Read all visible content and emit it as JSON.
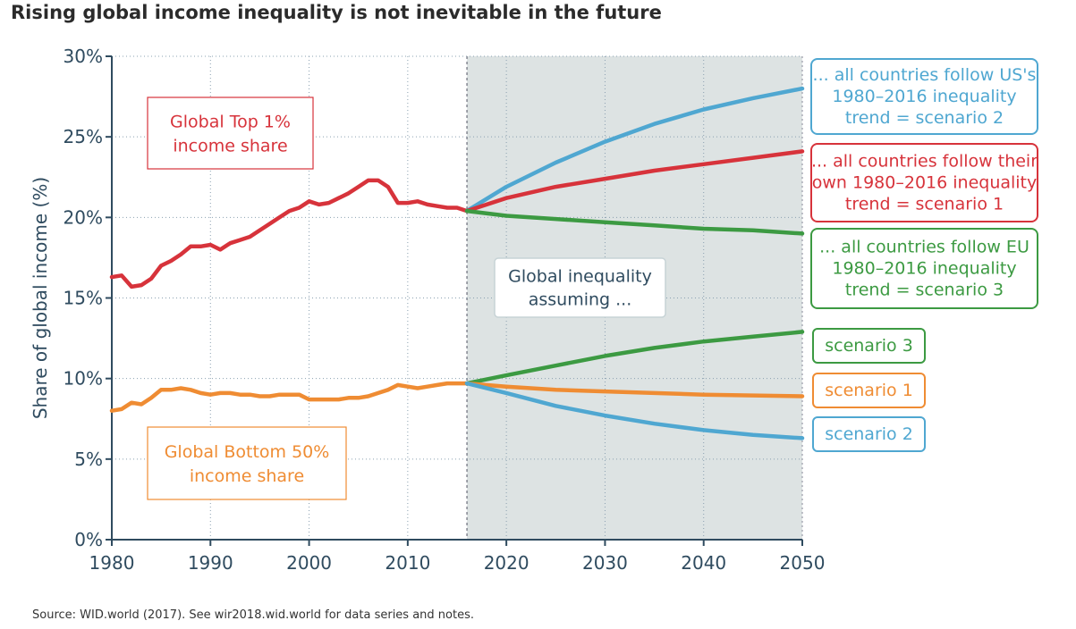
{
  "title": "Rising global income inequality is not inevitable in the future",
  "source": "Source: WID.world (2017). See wir2018.wid.world for data series and notes.",
  "colors": {
    "red": "#d7333b",
    "orange": "#ef8c33",
    "blue": "#4fa7d1",
    "green": "#3c9a42",
    "axis": "#2f4b5f",
    "shade": "#dde3e3",
    "textbox": "#2f4b5f"
  },
  "chart_data": {
    "type": "line",
    "xlabel": "",
    "ylabel": "Share of global income (%)",
    "xlim": [
      1980,
      2050
    ],
    "ylim": [
      0,
      30
    ],
    "xticks": [
      1980,
      1990,
      2000,
      2010,
      2020,
      2030,
      2040,
      2050
    ],
    "xtick_labels": [
      "1980",
      "1990",
      "2000",
      "2010",
      "2020",
      "2030",
      "2040",
      "2050"
    ],
    "yticks": [
      0,
      5,
      10,
      15,
      20,
      25,
      30
    ],
    "ytick_labels": [
      "0%",
      "5%",
      "10%",
      "15%",
      "20%",
      "25%",
      "30%"
    ],
    "projection_start": 2016,
    "grid": true,
    "series": [
      {
        "name": "Global Top 1% income share",
        "color": "red",
        "x": [
          1980,
          1981,
          1982,
          1983,
          1984,
          1985,
          1986,
          1987,
          1988,
          1989,
          1990,
          1991,
          1992,
          1993,
          1994,
          1995,
          1996,
          1997,
          1998,
          1999,
          2000,
          2001,
          2002,
          2003,
          2004,
          2005,
          2006,
          2007,
          2008,
          2009,
          2010,
          2011,
          2012,
          2013,
          2014,
          2015,
          2016
        ],
        "y": [
          16.3,
          16.4,
          15.7,
          15.8,
          16.2,
          17.0,
          17.3,
          17.7,
          18.2,
          18.2,
          18.3,
          18.0,
          18.4,
          18.6,
          18.8,
          19.2,
          19.6,
          20.0,
          20.4,
          20.6,
          21.0,
          20.8,
          20.9,
          21.2,
          21.5,
          21.9,
          22.3,
          22.3,
          21.9,
          20.9,
          20.9,
          21.0,
          20.8,
          20.7,
          20.6,
          20.6,
          20.4
        ]
      },
      {
        "name": "Global Bottom 50% income share",
        "color": "orange",
        "x": [
          1980,
          1981,
          1982,
          1983,
          1984,
          1985,
          1986,
          1987,
          1988,
          1989,
          1990,
          1991,
          1992,
          1993,
          1994,
          1995,
          1996,
          1997,
          1998,
          1999,
          2000,
          2001,
          2002,
          2003,
          2004,
          2005,
          2006,
          2007,
          2008,
          2009,
          2010,
          2011,
          2012,
          2013,
          2014,
          2015,
          2016
        ],
        "y": [
          8.0,
          8.1,
          8.5,
          8.4,
          8.8,
          9.3,
          9.3,
          9.4,
          9.3,
          9.1,
          9.0,
          9.1,
          9.1,
          9.0,
          9.0,
          8.9,
          8.9,
          9.0,
          9.0,
          9.0,
          8.7,
          8.7,
          8.7,
          8.7,
          8.8,
          8.8,
          8.9,
          9.1,
          9.3,
          9.6,
          9.5,
          9.4,
          9.5,
          9.6,
          9.7,
          9.7,
          9.7
        ]
      },
      {
        "name": "Top 1% scenario 2",
        "color": "blue",
        "x": [
          2016,
          2020,
          2025,
          2030,
          2035,
          2040,
          2045,
          2050
        ],
        "y": [
          20.4,
          21.9,
          23.4,
          24.7,
          25.8,
          26.7,
          27.4,
          28.0
        ]
      },
      {
        "name": "Top 1% scenario 1",
        "color": "red",
        "x": [
          2016,
          2020,
          2025,
          2030,
          2035,
          2040,
          2045,
          2050
        ],
        "y": [
          20.4,
          21.2,
          21.9,
          22.4,
          22.9,
          23.3,
          23.7,
          24.1
        ]
      },
      {
        "name": "Top 1% scenario 3",
        "color": "green",
        "x": [
          2016,
          2020,
          2025,
          2030,
          2035,
          2040,
          2045,
          2050
        ],
        "y": [
          20.4,
          20.1,
          19.9,
          19.7,
          19.5,
          19.3,
          19.2,
          19.0
        ]
      },
      {
        "name": "Bottom 50% scenario 3",
        "color": "green",
        "x": [
          2016,
          2020,
          2025,
          2030,
          2035,
          2040,
          2045,
          2050
        ],
        "y": [
          9.7,
          10.2,
          10.8,
          11.4,
          11.9,
          12.3,
          12.6,
          12.9
        ]
      },
      {
        "name": "Bottom 50% scenario 1",
        "color": "orange",
        "x": [
          2016,
          2020,
          2025,
          2030,
          2035,
          2040,
          2045,
          2050
        ],
        "y": [
          9.7,
          9.5,
          9.3,
          9.2,
          9.1,
          9.0,
          8.95,
          8.9
        ]
      },
      {
        "name": "Bottom 50% scenario 2",
        "color": "blue",
        "x": [
          2016,
          2020,
          2025,
          2030,
          2035,
          2040,
          2045,
          2050
        ],
        "y": [
          9.7,
          9.1,
          8.3,
          7.7,
          7.2,
          6.8,
          6.5,
          6.3
        ]
      }
    ],
    "annotations": {
      "top1_label": [
        "Global Top 1%",
        "income share"
      ],
      "bottom50_label": [
        "Global Bottom 50%",
        "income share"
      ],
      "assumption_label": [
        "Global inequality",
        "assuming ..."
      ],
      "scenario2_top": [
        "... all countries follow US's",
        "1980–2016 inequality",
        "trend = scenario 2"
      ],
      "scenario1_top": [
        "... all countries follow their",
        "own 1980–2016 inequality",
        "trend = scenario 1"
      ],
      "scenario3_top": [
        "... all countries follow EU",
        "1980–2016 inequality",
        "trend = scenario 3"
      ],
      "scenario3_bottom": "scenario 3",
      "scenario1_bottom": "scenario 1",
      "scenario2_bottom": "scenario 2"
    }
  }
}
